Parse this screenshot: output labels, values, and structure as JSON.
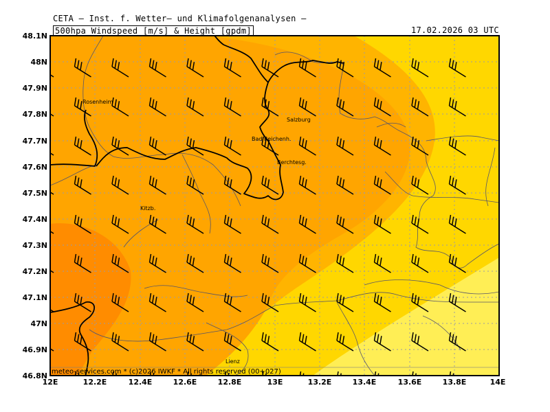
{
  "header": {
    "institution": "CETA – Inst. f. Wetter– und Klimafolgenanalysen –",
    "parameter": "500hpa Windspeed [m/s] & Height [gpdm]",
    "datetime": "17.02.2026 03 UTC"
  },
  "footer": {
    "copyright": "meteo-services.com * (c)2026 IWKF * All rights reserved (00+027)"
  },
  "map": {
    "lon_range": [
      12.0,
      14.0
    ],
    "lat_range": [
      46.8,
      48.1
    ],
    "lon_labels": [
      "12E",
      "12.2E",
      "12.4E",
      "12.6E",
      "12.8E",
      "13E",
      "13.2E",
      "13.4E",
      "13.6E",
      "13.8E",
      "14E"
    ],
    "lat_labels": [
      "48.1N",
      "48N",
      "47.9N",
      "47.8N",
      "47.7N",
      "47.6N",
      "47.5N",
      "47.4N",
      "47.3N",
      "47.2N",
      "47.1N",
      "47N",
      "46.9N",
      "46.8N"
    ],
    "grid": "dotted",
    "cities": [
      {
        "name": "Rosenheim",
        "lon": 12.13,
        "lat": 47.857
      },
      {
        "name": "Salzburg",
        "lon": 13.05,
        "lat": 47.8
      },
      {
        "name": "Bad Reichenh.",
        "lon": 12.88,
        "lat": 47.72
      },
      {
        "name": "Berchtesg.",
        "lon": 13.0,
        "lat": 47.63
      },
      {
        "name": "Kitzb.",
        "lon": 12.39,
        "lat": 47.45
      },
      {
        "name": "Lienz",
        "lon": 12.78,
        "lat": 46.83
      }
    ],
    "wind_barbs": {
      "rows": 9,
      "cols": 12,
      "direction": "north-west flow"
    },
    "colors": {
      "band_dark": "#ff8c00",
      "band_orange": "#ffa500",
      "band_amber": "#ffb400",
      "band_gold": "#ffd700",
      "band_yellow": "#ffee55"
    }
  }
}
